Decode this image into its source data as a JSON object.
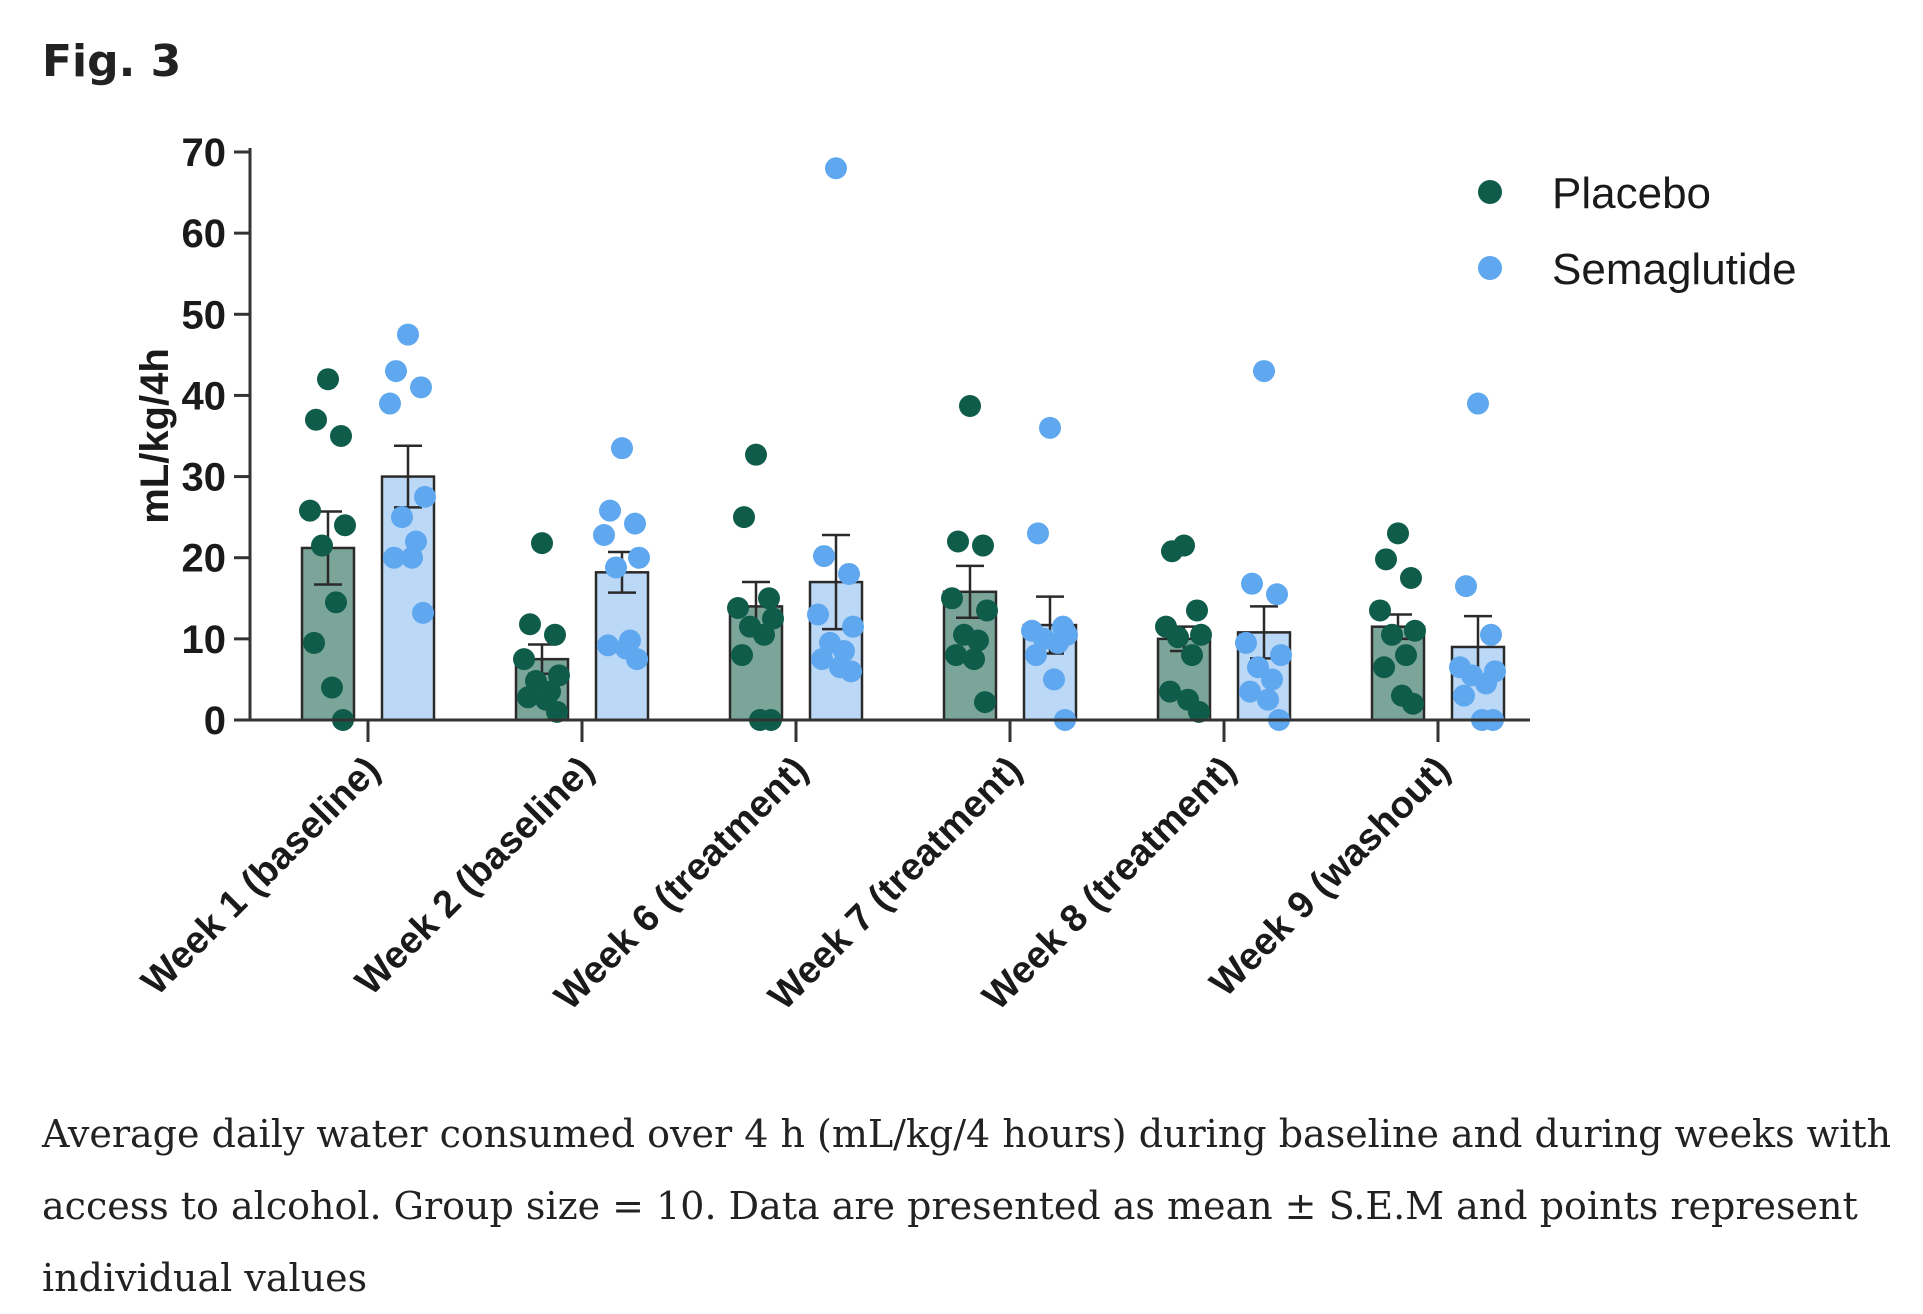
{
  "figure": {
    "label": "Fig. 3",
    "caption": "Average daily water consumed over 4 h (mL/kg/4 hours) during baseline and during weeks with access to alcohol. Group size = 10. Data are presented as mean ± S.E.M and points represent individual values"
  },
  "chart_data": {
    "type": "bar",
    "title": "",
    "xlabel": "",
    "ylabel": "mL/kg/4h",
    "ylim": [
      0,
      70
    ],
    "yticks": [
      0,
      10,
      20,
      30,
      40,
      50,
      60,
      70
    ],
    "legend_position": "top-right",
    "colors": {
      "placebo_dot": "#0f5c4a",
      "placebo_bar": "#7aa598",
      "semaglutide_dot": "#5fa8ef",
      "semaglutide_bar": "#bcd8f7",
      "axis": "#333333"
    },
    "categories": [
      "Week 1 (baseline)",
      "Week 2 (baseline)",
      "Week 6 (treatment)",
      "Week 7 (treatment)",
      "Week 8 (treatment)",
      "Week 9 (washout)"
    ],
    "series": [
      {
        "name": "Placebo",
        "means": [
          21.2,
          7.5,
          14.0,
          15.8,
          10.0,
          11.5
        ],
        "sem": [
          4.5,
          1.8,
          3.0,
          3.2,
          1.5,
          1.5
        ],
        "points": [
          [
            42,
            37,
            35,
            25.8,
            24,
            21.5,
            14.5,
            9.5,
            4,
            0
          ],
          [
            21.8,
            11.8,
            10.5,
            7.5,
            5.5,
            4.8,
            3.5,
            2.8,
            2.5,
            1
          ],
          [
            32.7,
            25,
            15,
            13.8,
            12.5,
            11.5,
            10.5,
            8,
            0,
            0
          ],
          [
            38.7,
            22,
            21.5,
            15,
            13.5,
            10.5,
            9.8,
            8,
            7.5,
            2.2
          ],
          [
            21.5,
            20.8,
            13.5,
            11.5,
            10.5,
            10.2,
            8,
            3.5,
            2.5,
            1
          ],
          [
            23,
            19.8,
            17.5,
            13.5,
            11,
            10.5,
            8,
            6.5,
            3,
            2
          ]
        ]
      },
      {
        "name": "Semaglutide",
        "means": [
          30.0,
          18.2,
          17.0,
          11.7,
          10.8,
          9.0
        ],
        "sem": [
          3.8,
          2.5,
          5.8,
          3.5,
          3.2,
          3.8
        ],
        "points": [
          [
            47.5,
            43,
            41,
            39,
            27.5,
            25,
            22,
            20,
            20,
            13.2
          ],
          [
            33.5,
            25.8,
            24.2,
            22.8,
            20,
            18.8,
            9.8,
            9.2,
            8.8,
            7.5
          ],
          [
            68,
            20.2,
            18,
            13,
            11.5,
            9.5,
            8.5,
            7.5,
            6.5,
            6
          ],
          [
            36,
            23,
            11.5,
            11,
            10.5,
            10,
            9.5,
            8,
            5,
            0
          ],
          [
            43,
            16.8,
            15.5,
            9.5,
            8,
            6.5,
            5,
            3.5,
            2.5,
            0
          ],
          [
            39,
            16.5,
            10.5,
            6.5,
            6,
            5.5,
            4.5,
            3,
            0,
            0
          ]
        ]
      }
    ]
  }
}
